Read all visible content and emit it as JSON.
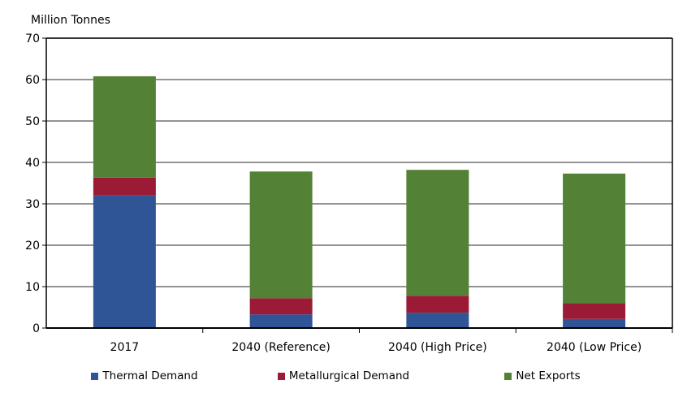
{
  "chart_data": {
    "type": "bar",
    "stacked": true,
    "title": "",
    "ylabel": "Million Tonnes",
    "xlabel": "",
    "ylim": [
      0,
      70
    ],
    "yticks": [
      0,
      10,
      20,
      30,
      40,
      50,
      60,
      70
    ],
    "grid": true,
    "legend_position": "bottom",
    "categories": [
      "2017",
      "2040 (Reference)",
      "2040 (High Price)",
      "2040 (Low Price)"
    ],
    "series": [
      {
        "name": "Thermal Demand",
        "color": "#2F5597",
        "values": [
          32.0,
          3.3,
          3.7,
          2.2
        ]
      },
      {
        "name": "Metallurgical Demand",
        "color": "#9B1B36",
        "values": [
          4.3,
          3.9,
          4.1,
          3.8
        ]
      },
      {
        "name": "Net Exports",
        "color": "#538135",
        "values": [
          24.5,
          30.6,
          30.4,
          31.3
        ]
      }
    ]
  }
}
